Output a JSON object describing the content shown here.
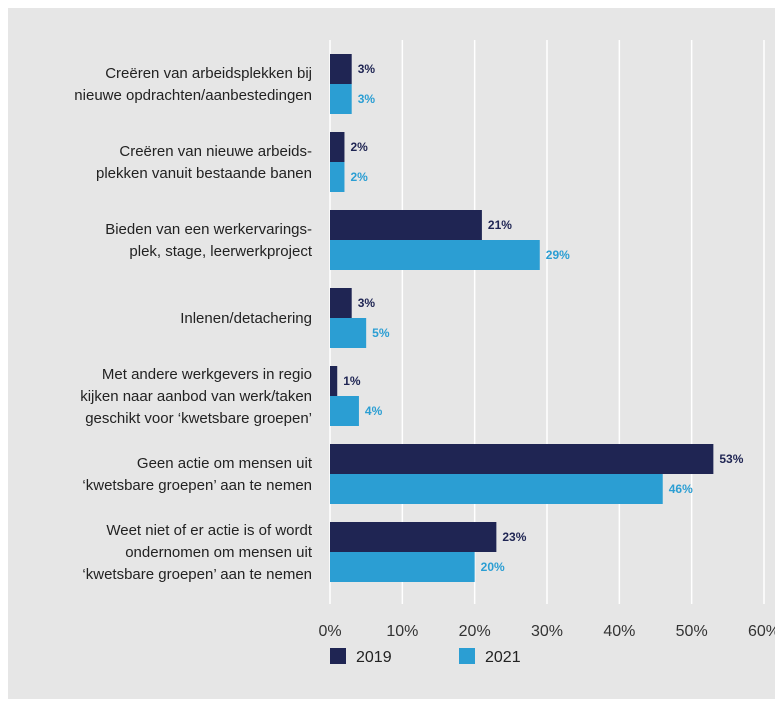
{
  "chart_data": {
    "type": "bar",
    "orientation": "horizontal",
    "categories": [
      [
        "Creëren van arbeidsplekken bij",
        "nieuwe opdrachten/aanbestedingen"
      ],
      [
        "Creëren van nieuwe arbeids-",
        "plekken vanuit bestaande banen"
      ],
      [
        "Bieden van een werkervarings-",
        "plek, stage, leerwerkproject"
      ],
      [
        "Inlenen/detachering"
      ],
      [
        "Met andere werkgevers in regio",
        "kijken naar aanbod van werk/taken",
        "geschikt voor ‘kwetsbare groepen’"
      ],
      [
        "Geen actie om mensen uit",
        "‘kwetsbare groepen’ aan te nemen"
      ],
      [
        "Weet niet of er actie is of wordt",
        "ondernomen om mensen uit",
        "‘kwetsbare groepen’ aan te nemen"
      ]
    ],
    "series": [
      {
        "name": "2019",
        "color": "#1f2553",
        "values": [
          3,
          2,
          21,
          3,
          1,
          53,
          23
        ],
        "labels": [
          "3%",
          "2%",
          "21%",
          "3%",
          "1%",
          "53%",
          "23%"
        ]
      },
      {
        "name": "2021",
        "color": "#2b9ed3",
        "values": [
          3,
          2,
          29,
          5,
          4,
          46,
          20
        ],
        "labels": [
          "3%",
          "2%",
          "29%",
          "5%",
          "4%",
          "46%",
          "20%"
        ]
      }
    ],
    "xlim": [
      0,
      60
    ],
    "xticks": [
      "0%",
      "10%",
      "20%",
      "30%",
      "40%",
      "50%",
      "60%"
    ],
    "grid": true,
    "legend_position": "bottom",
    "title": "",
    "xlabel": "",
    "ylabel": ""
  }
}
